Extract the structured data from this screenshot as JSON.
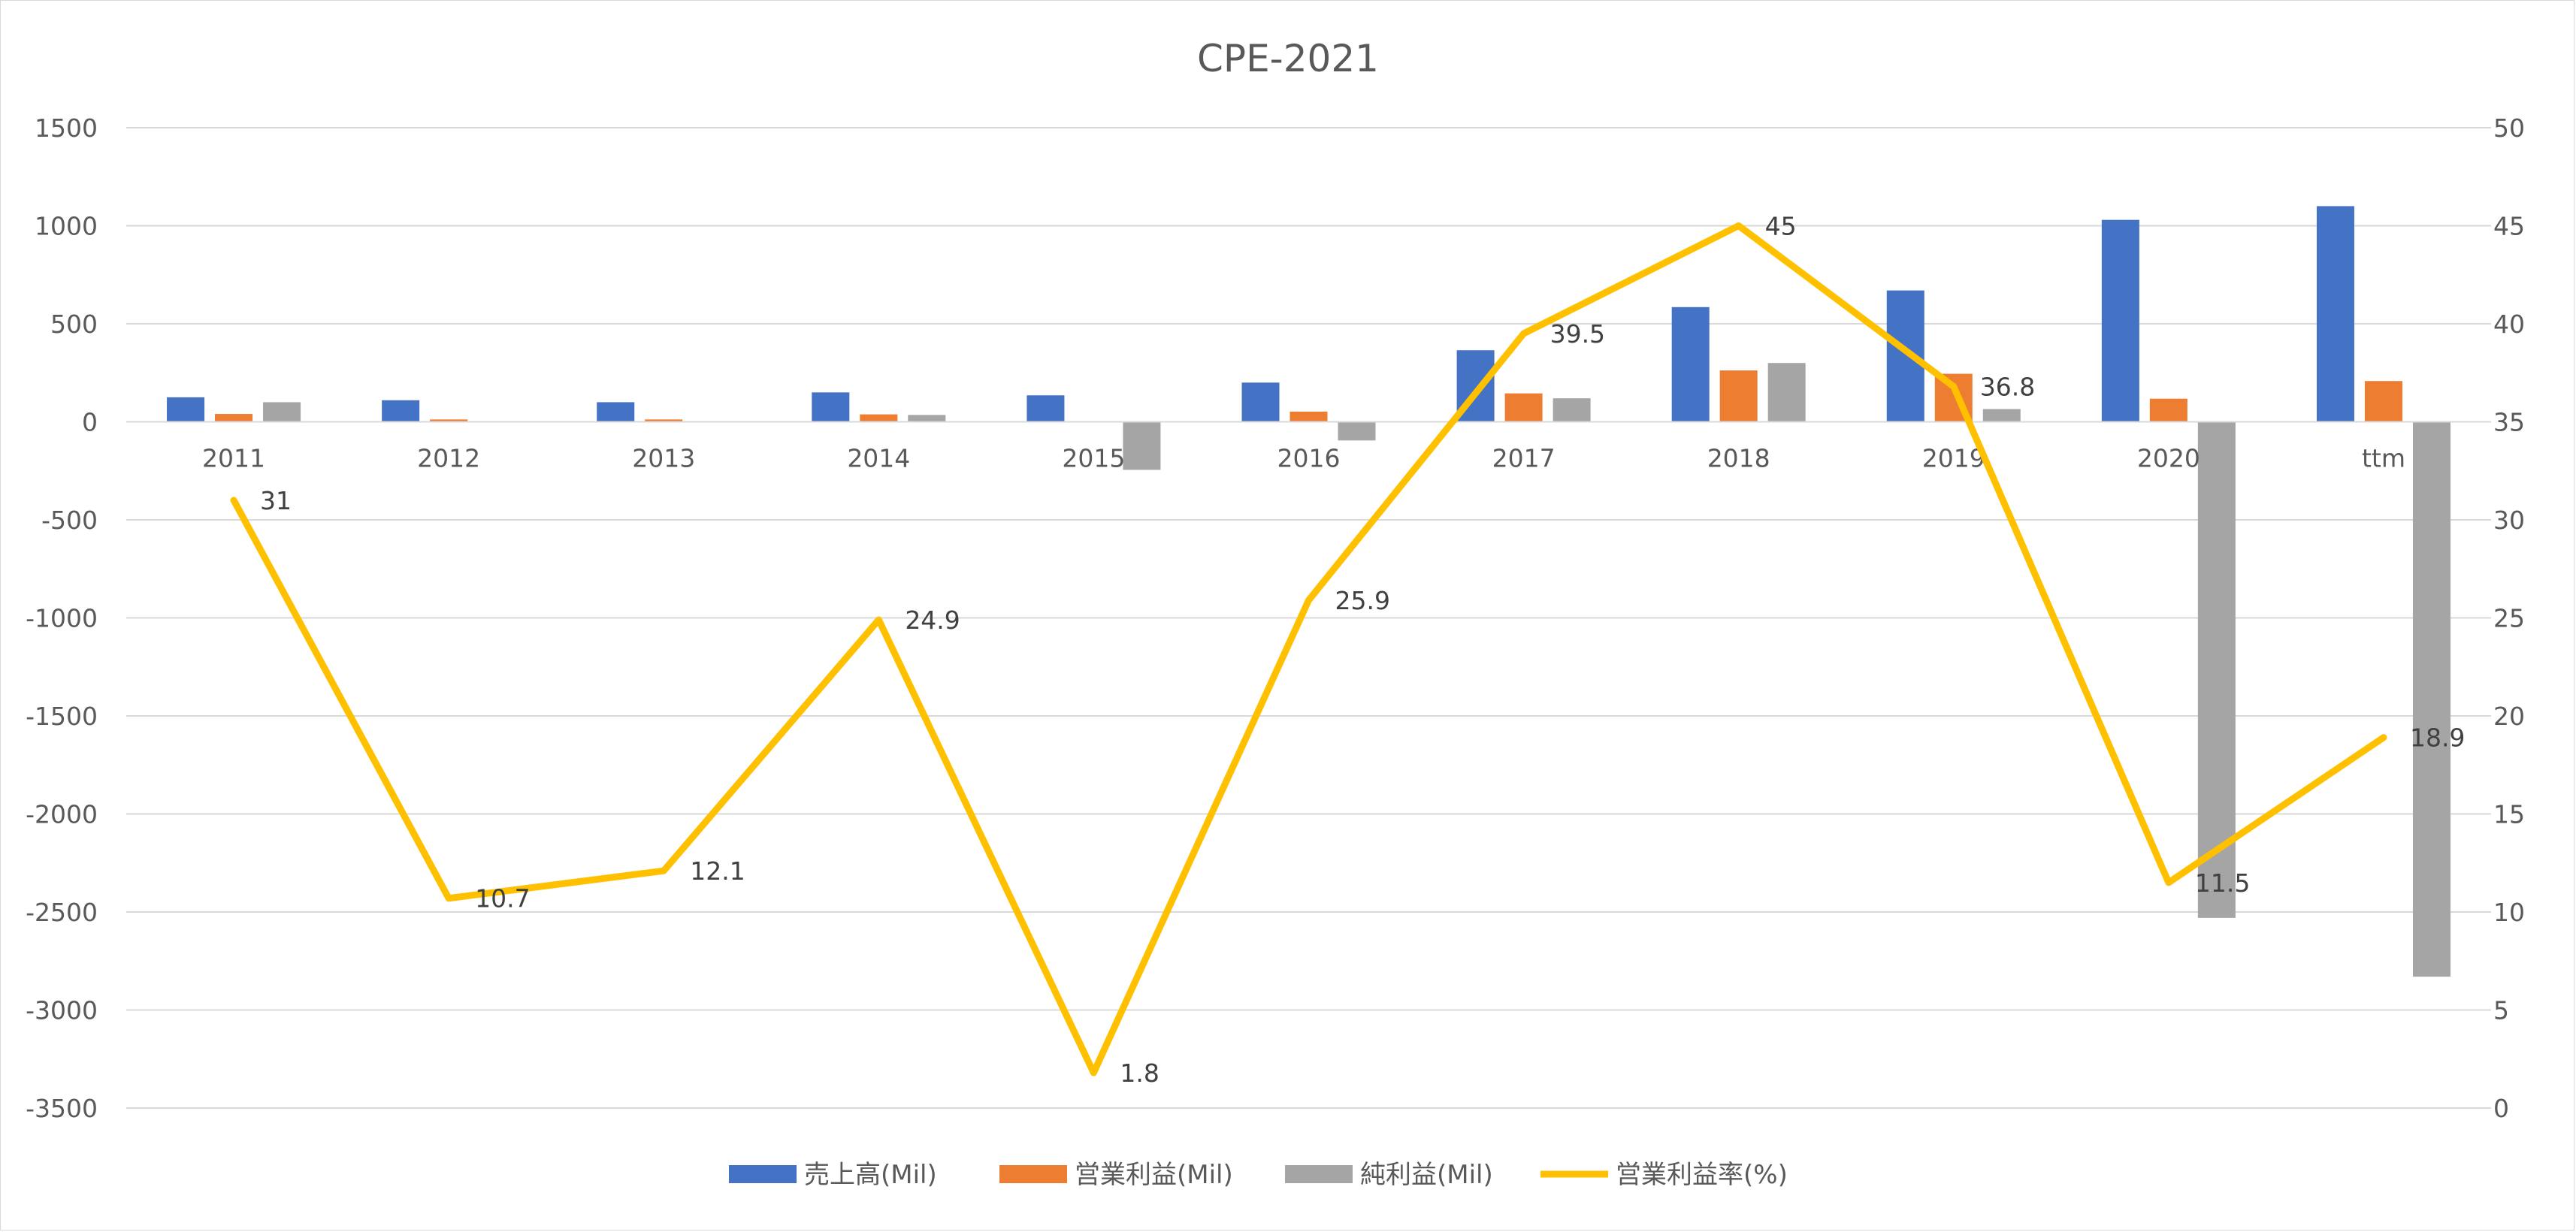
{
  "chart_data": {
    "type": "bar",
    "title": "CPE-2021",
    "categories": [
      "2011",
      "2012",
      "2013",
      "2014",
      "2015",
      "2016",
      "2017",
      "2018",
      "2019",
      "2020",
      "ttm"
    ],
    "series": [
      {
        "name": "売上高(Mil)",
        "kind": "bar",
        "axis": "left",
        "color": "#4472C4",
        "values": [
          125,
          110,
          100,
          150,
          135,
          200,
          365,
          585,
          670,
          1030,
          1100
        ]
      },
      {
        "name": "営業利益(Mil)",
        "kind": "bar",
        "axis": "left",
        "color": "#ED7D31",
        "values": [
          40,
          12,
          12,
          38,
          2,
          52,
          145,
          262,
          245,
          118,
          208
        ]
      },
      {
        "name": "純利益(Mil)",
        "kind": "bar",
        "axis": "left",
        "color": "#A5A5A5",
        "values": [
          100,
          0,
          0,
          35,
          -245,
          -95,
          120,
          300,
          65,
          -2530,
          -2830
        ]
      },
      {
        "name": "営業利益率(%)",
        "kind": "line",
        "axis": "right",
        "color": "#FFC000",
        "values": [
          31,
          10.7,
          12.1,
          24.9,
          1.8,
          25.9,
          39.5,
          45,
          36.8,
          11.5,
          18.9
        ]
      }
    ],
    "data_labels": [
      "31",
      "10.7",
      "12.1",
      "24.9",
      "1.8",
      "25.9",
      "39.5",
      "45",
      "36.8",
      "11.5",
      "18.9"
    ],
    "left_axis": {
      "ylim": [
        -3500,
        1500
      ],
      "ticks": [
        "1500",
        "1000",
        "500",
        "0",
        "-500",
        "-1000",
        "-1500",
        "-2000",
        "-2500",
        "-3000",
        "-3500"
      ]
    },
    "right_axis": {
      "ylim": [
        0,
        50
      ],
      "ticks": [
        "50",
        "45",
        "40",
        "35",
        "30",
        "25",
        "20",
        "15",
        "10",
        "5",
        "0"
      ]
    },
    "grid": true,
    "legend_position": "bottom"
  }
}
